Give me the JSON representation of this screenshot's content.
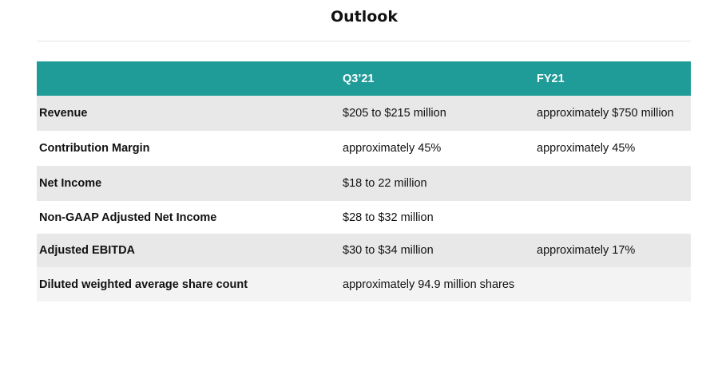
{
  "title": "Outlook",
  "table": {
    "headers": [
      "",
      "Q3’21",
      "FY21"
    ],
    "rows": [
      {
        "label": "Revenue",
        "q3": "$205 to $215 million",
        "fy": "approximately $750 million"
      },
      {
        "label": "Contribution Margin",
        "q3": "approximately 45%",
        "fy": "approximately 45%"
      },
      {
        "label": "Net Income",
        "q3": "$18 to 22 million",
        "fy": ""
      },
      {
        "label": "Non-GAAP Adjusted Net Income",
        "q3": "$28 to $32 million",
        "fy": ""
      },
      {
        "label": "Adjusted EBITDA",
        "q3": "$30 to $34 million",
        "fy": "approximately 17%"
      },
      {
        "label": "Diluted weighted average share count",
        "q3": "approximately 94.9 million shares",
        "fy": ""
      }
    ]
  }
}
